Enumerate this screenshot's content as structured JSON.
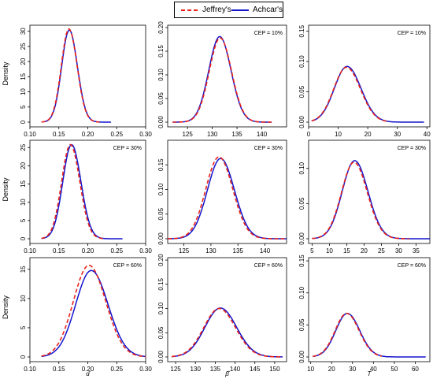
{
  "legend": {
    "items": [
      {
        "label": "Jeffrey's",
        "color": "#e8221b",
        "dash": true
      },
      {
        "label": "Achcar's",
        "color": "#1414cc",
        "dash": false
      }
    ]
  },
  "chart_data": [
    {
      "type": "line",
      "row": 0,
      "col": 0,
      "annotation": "",
      "ylabel": "Density",
      "xlabel": "",
      "xlim": [
        0.1,
        0.3
      ],
      "ylim": [
        0,
        32
      ],
      "xticks": [
        "0.10",
        "0.15",
        "0.20",
        "0.25",
        "0.30"
      ],
      "yticks": [
        "0",
        "5",
        "10",
        "15",
        "20",
        "25",
        "30"
      ],
      "curve": {
        "mean": 0.168,
        "sd": 0.0131,
        "peak": 30.4,
        "skew": 0.003
      },
      "series": [
        {
          "name": "Jeffrey's",
          "peak_factor": 1.012,
          "shift": -0.0006,
          "range": [
            0.12,
            0.22
          ]
        },
        {
          "name": "Achcar's",
          "peak_factor": 1.0,
          "shift": 0.0,
          "range": [
            0.125,
            0.24
          ]
        }
      ]
    },
    {
      "type": "line",
      "row": 0,
      "col": 1,
      "annotation": "CEP = 10%",
      "ylabel": "",
      "xlabel": "",
      "xlim": [
        121,
        145
      ],
      "ylim": [
        0,
        0.205
      ],
      "xticks": [
        "125",
        "130",
        "135",
        "140"
      ],
      "yticks": [
        "0.00",
        "0.05",
        "0.10",
        "0.15",
        "0.20"
      ],
      "curve": {
        "mean": 131.5,
        "sd": 2.2,
        "peak": 0.181,
        "skew": 0.25
      },
      "series": [
        {
          "name": "Jeffrey's",
          "peak_factor": 0.985,
          "shift": 0.1,
          "range": [
            122,
            142
          ]
        },
        {
          "name": "Achcar's",
          "peak_factor": 1.0,
          "shift": 0.0,
          "range": [
            122,
            142
          ]
        }
      ]
    },
    {
      "type": "line",
      "row": 0,
      "col": 2,
      "annotation": "CEP = 10%",
      "ylabel": "",
      "xlabel": "",
      "xlim": [
        0,
        41
      ],
      "ylim": [
        0,
        0.16
      ],
      "xticks": [
        "0",
        "10",
        "20",
        "30",
        "40"
      ],
      "yticks": [
        "0.00",
        "0.05",
        "0.10",
        "0.15"
      ],
      "curve": {
        "mean": 13.0,
        "sd": 4.3,
        "peak": 0.092,
        "skew": 1.2
      },
      "series": [
        {
          "name": "Jeffrey's",
          "peak_factor": 0.985,
          "shift": -0.2,
          "range": [
            1,
            27
          ]
        },
        {
          "name": "Achcar's",
          "peak_factor": 1.0,
          "shift": 0.0,
          "range": [
            1,
            39
          ]
        }
      ]
    },
    {
      "type": "line",
      "row": 1,
      "col": 0,
      "annotation": "CEP = 30%",
      "ylabel": "Density",
      "xlabel": "",
      "xlim": [
        0.1,
        0.3
      ],
      "ylim": [
        0,
        27
      ],
      "xticks": [
        "0.10",
        "0.15",
        "0.20",
        "0.25",
        "0.30"
      ],
      "yticks": [
        "0",
        "5",
        "10",
        "15",
        "20",
        "25"
      ],
      "curve": {
        "mean": 0.172,
        "sd": 0.0152,
        "peak": 25.8,
        "skew": 0.003
      },
      "series": [
        {
          "name": "Jeffrey's",
          "peak_factor": 1.0,
          "shift": -0.002,
          "range": [
            0.12,
            0.23
          ]
        },
        {
          "name": "Achcar's",
          "peak_factor": 1.0,
          "shift": 0.0,
          "range": [
            0.12,
            0.26
          ]
        }
      ]
    },
    {
      "type": "line",
      "row": 1,
      "col": 1,
      "annotation": "CEP = 30%",
      "ylabel": "",
      "xlabel": "",
      "xlim": [
        122,
        144
      ],
      "ylim": [
        0,
        0.2
      ],
      "xticks": [
        "125",
        "130",
        "135",
        "140"
      ],
      "yticks": [
        "0.00",
        "0.05",
        "0.10",
        "0.15"
      ],
      "curve": {
        "mean": 131.8,
        "sd": 2.45,
        "peak": 0.163,
        "skew": 0.3
      },
      "series": [
        {
          "name": "Jeffrey's",
          "peak_factor": 1.02,
          "shift": -0.3,
          "range": [
            122,
            144
          ]
        },
        {
          "name": "Achcar's",
          "peak_factor": 1.0,
          "shift": 0.0,
          "range": [
            122,
            144
          ]
        }
      ]
    },
    {
      "type": "line",
      "row": 1,
      "col": 2,
      "annotation": "CEP = 30%",
      "ylabel": "",
      "xlabel": "",
      "xlim": [
        4,
        39
      ],
      "ylim": [
        0,
        0.14
      ],
      "xticks": [
        "5",
        "10",
        "15",
        "20",
        "25",
        "30",
        "35"
      ],
      "yticks": [
        "0.00",
        "0.05",
        "0.10"
      ],
      "curve": {
        "mean": 17.3,
        "sd": 3.6,
        "peak": 0.111,
        "skew": 0.7
      },
      "series": [
        {
          "name": "Jeffrey's",
          "peak_factor": 0.98,
          "shift": -0.2,
          "range": [
            5,
            33
          ]
        },
        {
          "name": "Achcar's",
          "peak_factor": 1.0,
          "shift": 0.0,
          "range": [
            5,
            39
          ]
        }
      ]
    },
    {
      "type": "line",
      "row": 2,
      "col": 0,
      "annotation": "CEP = 60%",
      "ylabel": "Density",
      "xlabel": "α̂",
      "xlim": [
        0.1,
        0.3
      ],
      "ylim": [
        0,
        17
      ],
      "xticks": [
        "0.10",
        "0.15",
        "0.20",
        "0.25",
        "0.30"
      ],
      "yticks": [
        "0",
        "5",
        "10",
        "15"
      ],
      "curve": {
        "mean": 0.206,
        "sd": 0.027,
        "peak": 14.8,
        "skew": 0.006
      },
      "series": [
        {
          "name": "Jeffrey's",
          "peak_factor": 1.06,
          "shift": -0.004,
          "range": [
            0.12,
            0.3
          ]
        },
        {
          "name": "Achcar's",
          "peak_factor": 1.0,
          "shift": 0.0,
          "range": [
            0.12,
            0.3
          ]
        }
      ]
    },
    {
      "type": "line",
      "row": 2,
      "col": 1,
      "annotation": "CEP = 60%",
      "ylabel": "",
      "xlabel": "β̂",
      "xlim": [
        123,
        153
      ],
      "ylim": [
        0,
        0.205
      ],
      "xticks": [
        "125",
        "130",
        "135",
        "140",
        "145",
        "150"
      ],
      "yticks": [
        "0.00",
        "0.05",
        "0.10",
        "0.15",
        "0.20"
      ],
      "curve": {
        "mean": 136.3,
        "sd": 3.9,
        "peak": 0.101,
        "skew": 0.6
      },
      "series": [
        {
          "name": "Jeffrey's",
          "peak_factor": 0.99,
          "shift": -0.3,
          "range": [
            124,
            152
          ]
        },
        {
          "name": "Achcar's",
          "peak_factor": 1.0,
          "shift": 0.0,
          "range": [
            124,
            152
          ]
        }
      ]
    },
    {
      "type": "line",
      "row": 2,
      "col": 2,
      "annotation": "CEP = 60%",
      "ylabel": "",
      "xlabel": "T",
      "xlim": [
        9,
        67
      ],
      "ylim": [
        0,
        0.155
      ],
      "xticks": [
        "10",
        "20",
        "30",
        "40",
        "50",
        "60"
      ],
      "yticks": [
        "0.00",
        "0.05",
        "0.10",
        "0.15"
      ],
      "curve": {
        "mean": 27.5,
        "sd": 5.5,
        "peak": 0.068,
        "skew": 1.3
      },
      "series": [
        {
          "name": "Jeffrey's",
          "peak_factor": 1.0,
          "shift": -0.3,
          "range": [
            11,
            44
          ]
        },
        {
          "name": "Achcar's",
          "peak_factor": 1.0,
          "shift": 0.0,
          "range": [
            11,
            65
          ]
        }
      ]
    }
  ]
}
